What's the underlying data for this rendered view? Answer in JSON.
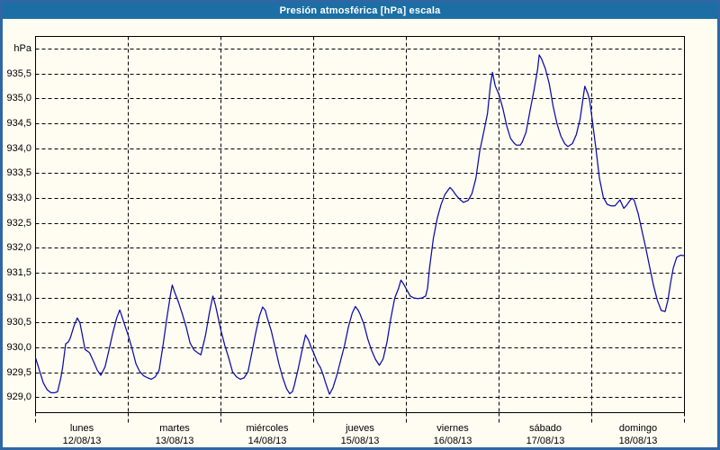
{
  "window": {
    "title": "Presión atmosférica [hPa] escala"
  },
  "chart": {
    "colors": {
      "background": "#fffdf2",
      "titlebar": "#1b6fa5",
      "titlebar_text": "#ffffff",
      "border": "#2f66a3",
      "plot_border": "#000000",
      "grid": "#000000",
      "line": "#0b0baa",
      "text": "#000000"
    }
  },
  "chart_data": {
    "type": "line",
    "title": "Presión atmosférica [hPa] escala",
    "xlabel": "",
    "ylabel": "hPa",
    "grid": "dashed",
    "legend": "none",
    "ylim": [
      928.7,
      936.25
    ],
    "ytick_step": 0.5,
    "ytick_values": [
      935.5,
      935.0,
      934.5,
      934.0,
      933.5,
      933.0,
      932.5,
      932.0,
      931.5,
      931.0,
      930.5,
      930.0,
      929.5,
      929.0
    ],
    "ytick_labels": [
      "935,5",
      "935,0",
      "934,5",
      "934,0",
      "933,5",
      "933,0",
      "932,5",
      "932,0",
      "931,5",
      "931,0",
      "930,5",
      "930,0",
      "929,5",
      "929,0"
    ],
    "ygrid_top_unlabeled": 936.0,
    "x_hours_total": 168,
    "x_days": [
      {
        "name": "lunes",
        "date": "12/08/13"
      },
      {
        "name": "martes",
        "date": "13/08/13"
      },
      {
        "name": "miércoles",
        "date": "14/08/13"
      },
      {
        "name": "jueves",
        "date": "15/08/13"
      },
      {
        "name": "viernes",
        "date": "16/08/13"
      },
      {
        "name": "sábado",
        "date": "17/08/13"
      },
      {
        "name": "domingo",
        "date": "18/08/13"
      }
    ],
    "series": [
      {
        "name": "Presión atmosférica",
        "unit": "hPa",
        "color": "#0b0baa",
        "points": [
          [
            0,
            929.8
          ],
          [
            1,
            929.55
          ],
          [
            2,
            929.3
          ],
          [
            3,
            929.16
          ],
          [
            4,
            929.1
          ],
          [
            5,
            929.1
          ],
          [
            5.7,
            929.12
          ],
          [
            6.5,
            929.38
          ],
          [
            7,
            929.6
          ],
          [
            7.8,
            930.08
          ],
          [
            8.5,
            930.12
          ],
          [
            9,
            930.2
          ],
          [
            10,
            930.45
          ],
          [
            10.8,
            930.6
          ],
          [
            11.5,
            930.5
          ],
          [
            12,
            930.3
          ],
          [
            12.8,
            929.97
          ],
          [
            13.5,
            929.93
          ],
          [
            14,
            929.9
          ],
          [
            15,
            929.73
          ],
          [
            16,
            929.55
          ],
          [
            16.9,
            929.45
          ],
          [
            18,
            929.62
          ],
          [
            19,
            929.95
          ],
          [
            20,
            930.3
          ],
          [
            21,
            930.6
          ],
          [
            21.8,
            930.76
          ],
          [
            22.5,
            930.6
          ],
          [
            23,
            930.48
          ],
          [
            24,
            930.25
          ],
          [
            25,
            929.98
          ],
          [
            26,
            929.68
          ],
          [
            27,
            929.52
          ],
          [
            28,
            929.44
          ],
          [
            29,
            929.4
          ],
          [
            30,
            929.37
          ],
          [
            31,
            929.42
          ],
          [
            32,
            929.55
          ],
          [
            33,
            930.05
          ],
          [
            34,
            930.6
          ],
          [
            35,
            931.1
          ],
          [
            35.4,
            931.26
          ],
          [
            36,
            931.12
          ],
          [
            37,
            930.92
          ],
          [
            38,
            930.68
          ],
          [
            39,
            930.42
          ],
          [
            40,
            930.1
          ],
          [
            41,
            929.96
          ],
          [
            42,
            929.9
          ],
          [
            42.8,
            929.86
          ],
          [
            44,
            930.25
          ],
          [
            45,
            930.7
          ],
          [
            45.9,
            931.04
          ],
          [
            46.6,
            930.85
          ],
          [
            47.3,
            930.6
          ],
          [
            48,
            930.35
          ],
          [
            49,
            930.05
          ],
          [
            50,
            929.8
          ],
          [
            51,
            929.52
          ],
          [
            52,
            929.42
          ],
          [
            53,
            929.37
          ],
          [
            54,
            929.4
          ],
          [
            55,
            929.52
          ],
          [
            56,
            929.9
          ],
          [
            57,
            930.3
          ],
          [
            58,
            930.65
          ],
          [
            58.8,
            930.82
          ],
          [
            59.5,
            930.75
          ],
          [
            60,
            930.6
          ],
          [
            61,
            930.35
          ],
          [
            62,
            930.02
          ],
          [
            63,
            929.68
          ],
          [
            64,
            929.4
          ],
          [
            65,
            929.18
          ],
          [
            65.8,
            929.08
          ],
          [
            66.5,
            929.12
          ],
          [
            67,
            929.25
          ],
          [
            68,
            929.58
          ],
          [
            69,
            929.95
          ],
          [
            69.9,
            930.26
          ],
          [
            70.7,
            930.15
          ],
          [
            71.3,
            930.02
          ],
          [
            72,
            929.9
          ],
          [
            73,
            929.7
          ],
          [
            73.8,
            929.6
          ],
          [
            74.5,
            929.45
          ],
          [
            75,
            929.32
          ],
          [
            76.1,
            929.07
          ],
          [
            77,
            929.2
          ],
          [
            78,
            929.45
          ],
          [
            79,
            929.75
          ],
          [
            80,
            930.05
          ],
          [
            81,
            930.42
          ],
          [
            82,
            930.7
          ],
          [
            82.8,
            930.83
          ],
          [
            83.5,
            930.76
          ],
          [
            84,
            930.68
          ],
          [
            85,
            930.48
          ],
          [
            86,
            930.18
          ],
          [
            87,
            929.95
          ],
          [
            88,
            929.77
          ],
          [
            89,
            929.65
          ],
          [
            90,
            929.78
          ],
          [
            91,
            930.12
          ],
          [
            92,
            930.6
          ],
          [
            93,
            931.0
          ],
          [
            94,
            931.2
          ],
          [
            94.6,
            931.36
          ],
          [
            95.3,
            931.28
          ],
          [
            96,
            931.18
          ],
          [
            97,
            931.04
          ],
          [
            98,
            931.0
          ],
          [
            99,
            930.99
          ],
          [
            100,
            931.0
          ],
          [
            101,
            931.04
          ],
          [
            101.5,
            931.2
          ],
          [
            102,
            931.6
          ],
          [
            103,
            932.2
          ],
          [
            104,
            932.6
          ],
          [
            105,
            932.88
          ],
          [
            106,
            933.08
          ],
          [
            107.3,
            933.22
          ],
          [
            108,
            933.16
          ],
          [
            109,
            933.05
          ],
          [
            110,
            932.97
          ],
          [
            110.8,
            932.92
          ],
          [
            112,
            932.96
          ],
          [
            113,
            933.1
          ],
          [
            114,
            933.4
          ],
          [
            115,
            933.95
          ],
          [
            116,
            934.32
          ],
          [
            117,
            934.7
          ],
          [
            117.8,
            935.3
          ],
          [
            118.3,
            935.53
          ],
          [
            119,
            935.26
          ],
          [
            120,
            935.08
          ],
          [
            121,
            934.8
          ],
          [
            122,
            934.45
          ],
          [
            123,
            934.2
          ],
          [
            124,
            934.1
          ],
          [
            124.5,
            934.07
          ],
          [
            125.5,
            934.07
          ],
          [
            126,
            934.13
          ],
          [
            127,
            934.33
          ],
          [
            128,
            934.75
          ],
          [
            129,
            935.15
          ],
          [
            130,
            935.6
          ],
          [
            130.4,
            935.88
          ],
          [
            131,
            935.8
          ],
          [
            132,
            935.6
          ],
          [
            133,
            935.3
          ],
          [
            134,
            934.85
          ],
          [
            135,
            934.5
          ],
          [
            136,
            934.25
          ],
          [
            137,
            934.1
          ],
          [
            137.8,
            934.04
          ],
          [
            139,
            934.1
          ],
          [
            140,
            934.28
          ],
          [
            141,
            934.6
          ],
          [
            142.2,
            935.25
          ],
          [
            143,
            935.1
          ],
          [
            143.5,
            934.95
          ],
          [
            144,
            934.65
          ],
          [
            145,
            934.05
          ],
          [
            146,
            933.4
          ],
          [
            147,
            933.02
          ],
          [
            148,
            932.88
          ],
          [
            149,
            932.85
          ],
          [
            150,
            932.85
          ],
          [
            151.3,
            932.97
          ],
          [
            152.3,
            932.8
          ],
          [
            153,
            932.86
          ],
          [
            154,
            932.97
          ],
          [
            154.5,
            933.0
          ],
          [
            155,
            932.96
          ],
          [
            156,
            932.7
          ],
          [
            157,
            932.35
          ],
          [
            158,
            932.0
          ],
          [
            159,
            931.62
          ],
          [
            160,
            931.25
          ],
          [
            161,
            930.95
          ],
          [
            162,
            930.75
          ],
          [
            163,
            930.73
          ],
          [
            163.7,
            930.95
          ],
          [
            164.4,
            931.3
          ],
          [
            165.1,
            931.6
          ],
          [
            166,
            931.82
          ],
          [
            167,
            931.86
          ],
          [
            168,
            931.85
          ]
        ]
      }
    ]
  }
}
